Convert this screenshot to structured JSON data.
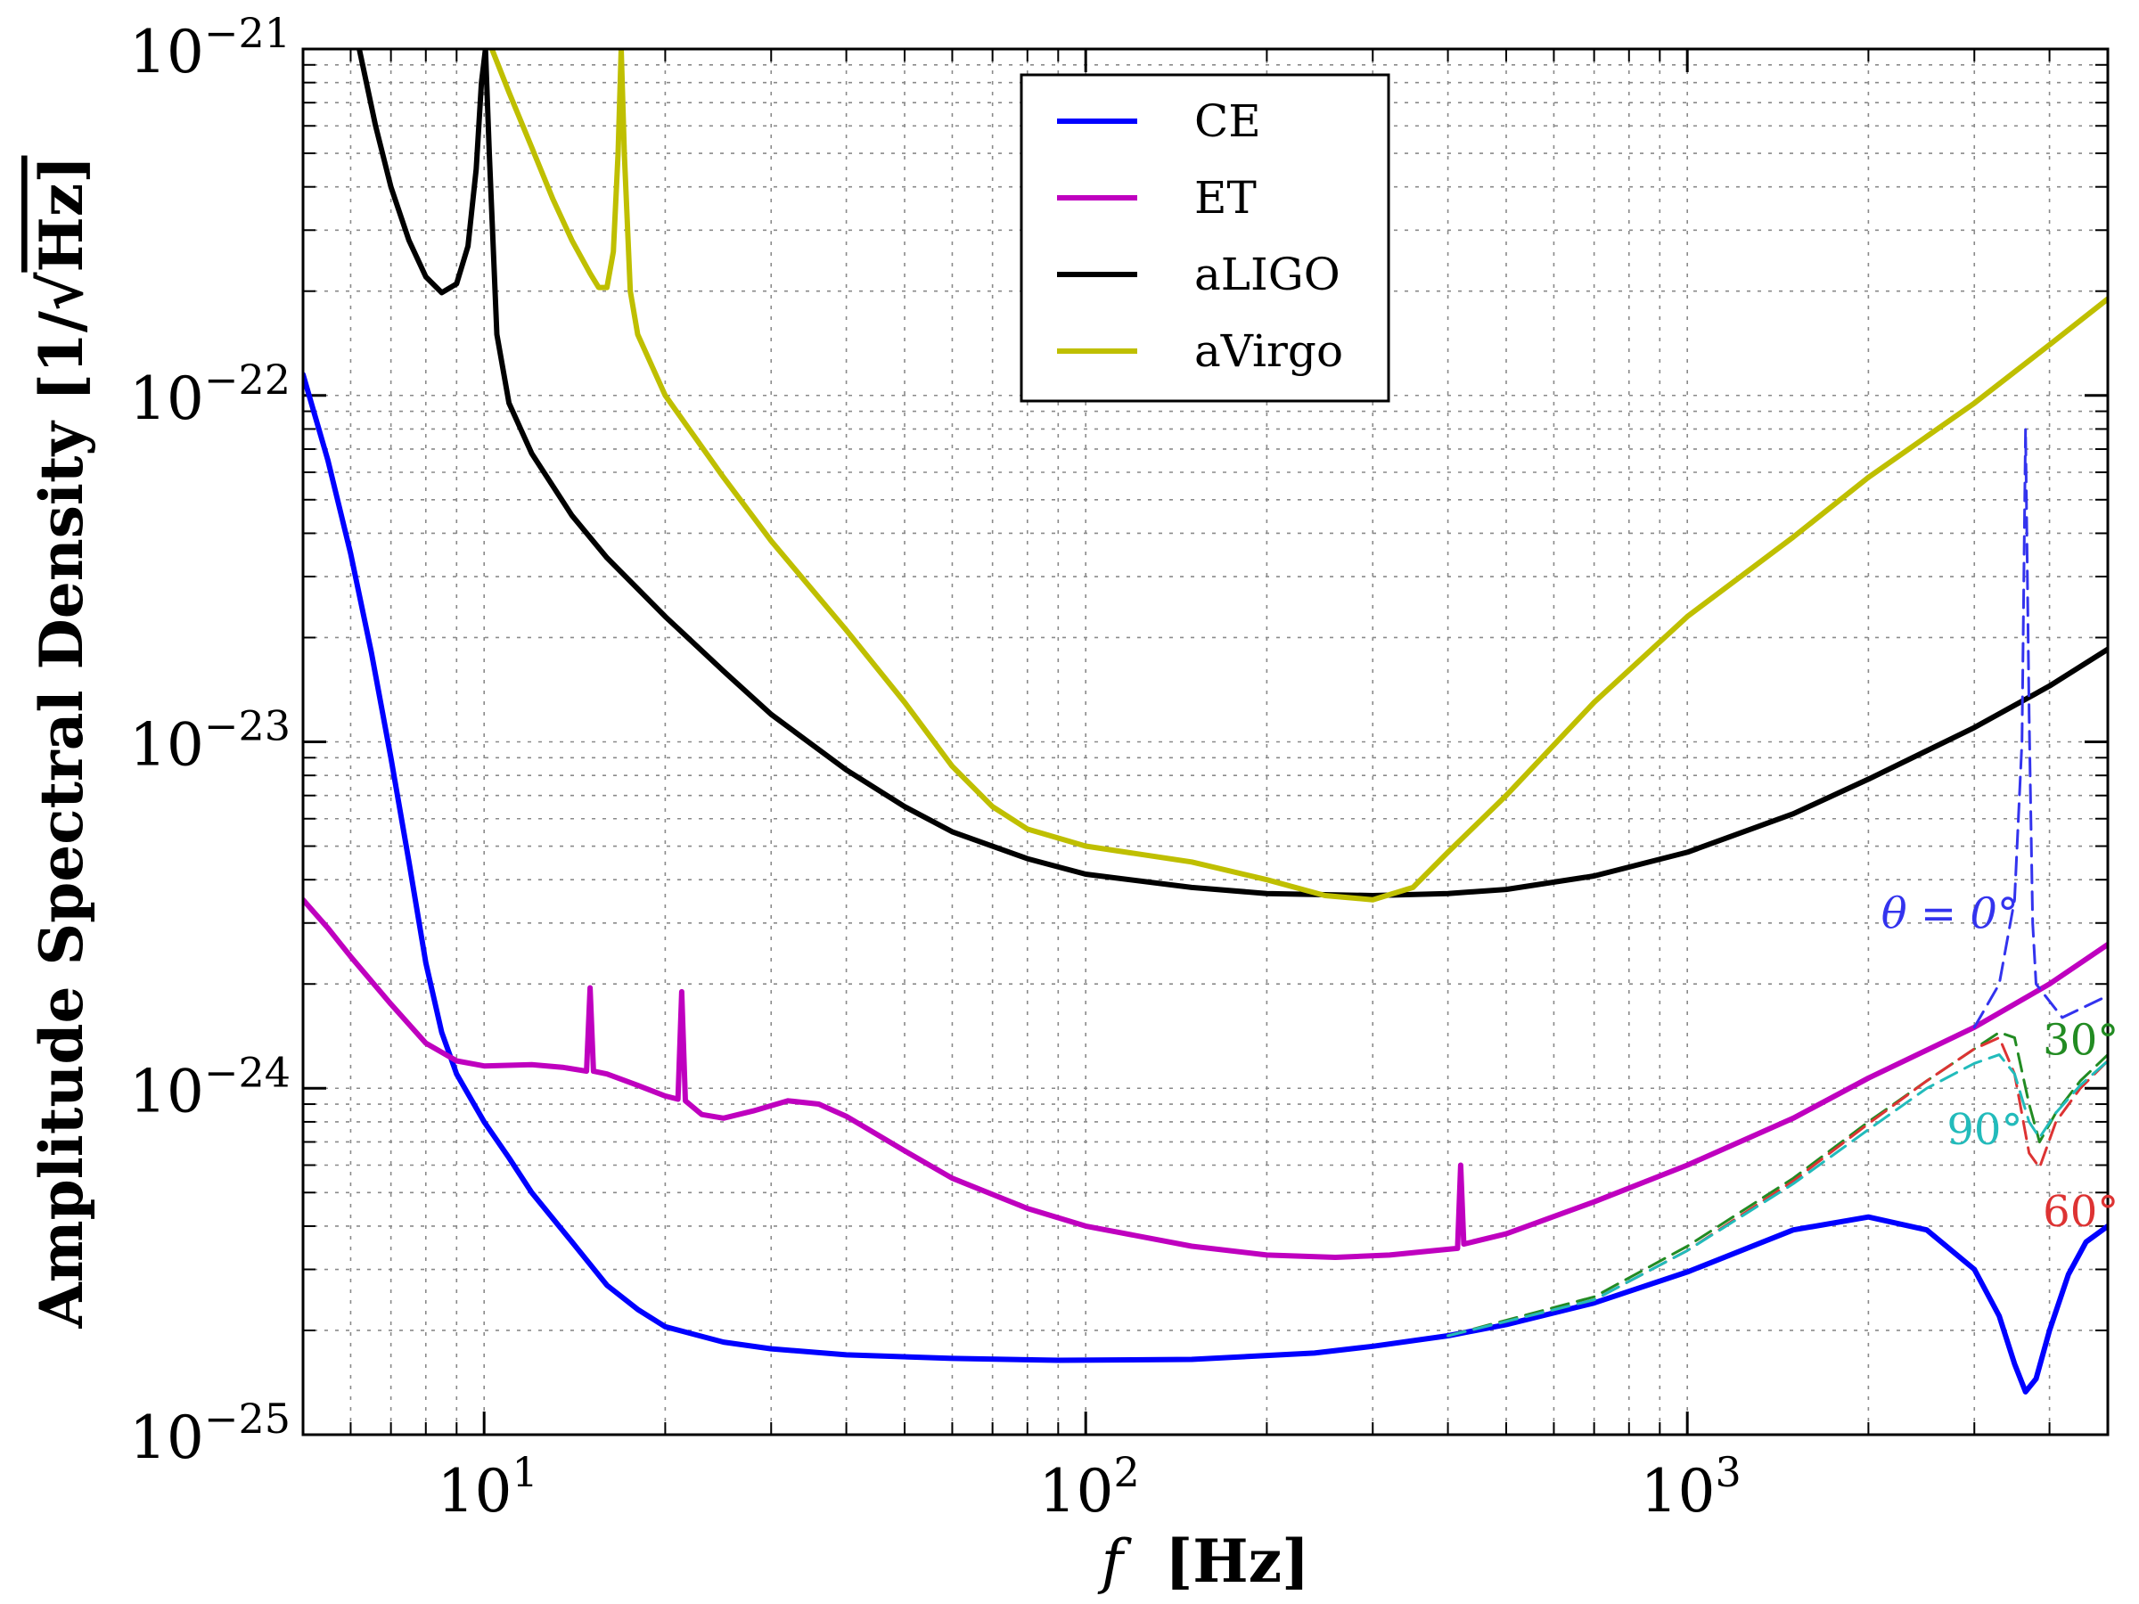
{
  "chart_data": {
    "type": "line",
    "xscale": "log",
    "yscale": "log",
    "xlim": [
      5,
      5000
    ],
    "ylim": [
      1e-25,
      1e-21
    ],
    "grid": true,
    "xlabel_var": "f",
    "xlabel_unit": "[Hz]",
    "ylabel_text": "Amplitude Spectral Density [1/√",
    "ylabel_unit_tail": "Hz]",
    "x_ticks": [
      {
        "value": 10,
        "base": "10",
        "exp": "1"
      },
      {
        "value": 100,
        "base": "10",
        "exp": "2"
      },
      {
        "value": 1000,
        "base": "10",
        "exp": "3"
      }
    ],
    "y_ticks": [
      {
        "value": 1e-21,
        "base": "10",
        "exp": "−21"
      },
      {
        "value": 1e-22,
        "base": "10",
        "exp": "−22"
      },
      {
        "value": 1e-23,
        "base": "10",
        "exp": "−23"
      },
      {
        "value": 1e-24,
        "base": "10",
        "exp": "−24"
      },
      {
        "value": 1e-25,
        "base": "10",
        "exp": "−25"
      }
    ],
    "legend_position": "upper-center",
    "series": [
      {
        "name": "CE",
        "color": "#0000ff",
        "style": "solid",
        "legend": true,
        "points": [
          [
            5,
            1.15e-22
          ],
          [
            5.5,
            6.5e-23
          ],
          [
            6,
            3.5e-23
          ],
          [
            6.5,
            1.8e-23
          ],
          [
            7,
            9e-24
          ],
          [
            7.5,
            4.5e-24
          ],
          [
            8,
            2.3e-24
          ],
          [
            8.5,
            1.45e-24
          ],
          [
            9,
            1.1e-24
          ],
          [
            10,
            8e-25
          ],
          [
            11,
            6.3e-25
          ],
          [
            12,
            5e-25
          ],
          [
            14,
            3.6e-25
          ],
          [
            16,
            2.7e-25
          ],
          [
            18,
            2.3e-25
          ],
          [
            20,
            2.05e-25
          ],
          [
            25,
            1.85e-25
          ],
          [
            30,
            1.77e-25
          ],
          [
            40,
            1.7e-25
          ],
          [
            60,
            1.66e-25
          ],
          [
            90,
            1.64e-25
          ],
          [
            150,
            1.65e-25
          ],
          [
            240,
            1.72e-25
          ],
          [
            300,
            1.8e-25
          ],
          [
            400,
            1.93e-25
          ],
          [
            500,
            2.08e-25
          ],
          [
            700,
            2.4e-25
          ],
          [
            1000,
            2.95e-25
          ],
          [
            1500,
            3.9e-25
          ],
          [
            2000,
            4.25e-25
          ],
          [
            2500,
            3.9e-25
          ],
          [
            3000,
            3e-25
          ],
          [
            3300,
            2.2e-25
          ],
          [
            3500,
            1.6e-25
          ],
          [
            3650,
            1.33e-25
          ],
          [
            3800,
            1.45e-25
          ],
          [
            4000,
            2e-25
          ],
          [
            4300,
            2.9e-25
          ],
          [
            4600,
            3.6e-25
          ],
          [
            5000,
            4e-25
          ]
        ]
      },
      {
        "name": "ET",
        "color": "#bf00bf",
        "style": "solid",
        "legend": true,
        "points": [
          [
            5,
            3.5e-24
          ],
          [
            5.5,
            2.9e-24
          ],
          [
            6,
            2.4e-24
          ],
          [
            7,
            1.75e-24
          ],
          [
            8,
            1.35e-24
          ],
          [
            9,
            1.2e-24
          ],
          [
            10,
            1.16e-24
          ],
          [
            12,
            1.17e-24
          ],
          [
            13.5,
            1.15e-24
          ],
          [
            14.8,
            1.12e-24
          ],
          [
            15,
            1.95e-24
          ],
          [
            15.2,
            1.12e-24
          ],
          [
            16,
            1.1e-24
          ],
          [
            18,
            1.02e-24
          ],
          [
            20,
            9.5e-25
          ],
          [
            21,
            9.3e-25
          ],
          [
            21.3,
            1.9e-24
          ],
          [
            21.6,
            9.2e-25
          ],
          [
            23,
            8.4e-25
          ],
          [
            25,
            8.2e-25
          ],
          [
            28,
            8.6e-25
          ],
          [
            32,
            9.2e-25
          ],
          [
            36,
            9e-25
          ],
          [
            40,
            8.3e-25
          ],
          [
            50,
            6.6e-25
          ],
          [
            60,
            5.5e-25
          ],
          [
            80,
            4.5e-25
          ],
          [
            100,
            4e-25
          ],
          [
            150,
            3.5e-25
          ],
          [
            200,
            3.3e-25
          ],
          [
            260,
            3.25e-25
          ],
          [
            320,
            3.3e-25
          ],
          [
            380,
            3.4e-25
          ],
          [
            415,
            3.45e-25
          ],
          [
            420,
            6e-25
          ],
          [
            425,
            3.55e-25
          ],
          [
            500,
            3.8e-25
          ],
          [
            700,
            4.7e-25
          ],
          [
            1000,
            6e-25
          ],
          [
            1500,
            8.2e-25
          ],
          [
            2000,
            1.07e-24
          ],
          [
            3000,
            1.5e-24
          ],
          [
            4000,
            2e-24
          ],
          [
            5000,
            2.6e-24
          ]
        ]
      },
      {
        "name": "aLIGO",
        "color": "#000000",
        "style": "solid",
        "legend": true,
        "points": [
          [
            6.2,
            1e-21
          ],
          [
            6.6,
            6e-22
          ],
          [
            7,
            4e-22
          ],
          [
            7.5,
            2.8e-22
          ],
          [
            8,
            2.2e-22
          ],
          [
            8.5,
            1.98e-22
          ],
          [
            9,
            2.1e-22
          ],
          [
            9.4,
            2.7e-22
          ],
          [
            9.7,
            4.5e-22
          ],
          [
            9.9,
            8e-22
          ],
          [
            10.05,
            1e-21
          ],
          [
            10.2,
            5e-22
          ],
          [
            10.5,
            1.5e-22
          ],
          [
            11,
            9.5e-23
          ],
          [
            12,
            6.8e-23
          ],
          [
            14,
            4.5e-23
          ],
          [
            16,
            3.4e-23
          ],
          [
            20,
            2.3e-23
          ],
          [
            25,
            1.6e-23
          ],
          [
            30,
            1.2e-23
          ],
          [
            40,
            8.3e-24
          ],
          [
            50,
            6.5e-24
          ],
          [
            60,
            5.5e-24
          ],
          [
            80,
            4.6e-24
          ],
          [
            100,
            4.15e-24
          ],
          [
            150,
            3.8e-24
          ],
          [
            200,
            3.65e-24
          ],
          [
            300,
            3.6e-24
          ],
          [
            400,
            3.65e-24
          ],
          [
            500,
            3.75e-24
          ],
          [
            700,
            4.1e-24
          ],
          [
            1000,
            4.8e-24
          ],
          [
            1500,
            6.2e-24
          ],
          [
            2000,
            7.8e-24
          ],
          [
            3000,
            1.1e-23
          ],
          [
            4000,
            1.45e-23
          ],
          [
            5000,
            1.85e-23
          ]
        ]
      },
      {
        "name": "aVirgo",
        "color": "#bfbf00",
        "style": "solid",
        "legend": true,
        "points": [
          [
            10.3,
            1e-21
          ],
          [
            11,
            7.5e-22
          ],
          [
            12,
            5.2e-22
          ],
          [
            13,
            3.7e-22
          ],
          [
            14,
            2.8e-22
          ],
          [
            15,
            2.25e-22
          ],
          [
            15.5,
            2.05e-22
          ],
          [
            16,
            2.05e-22
          ],
          [
            16.4,
            2.6e-22
          ],
          [
            16.7,
            5e-22
          ],
          [
            16.9,
            1e-21
          ],
          [
            17.1,
            5e-22
          ],
          [
            17.5,
            2e-22
          ],
          [
            18,
            1.5e-22
          ],
          [
            20,
            1e-22
          ],
          [
            25,
            5.8e-23
          ],
          [
            30,
            3.8e-23
          ],
          [
            40,
            2.1e-23
          ],
          [
            50,
            1.3e-23
          ],
          [
            60,
            8.5e-24
          ],
          [
            70,
            6.5e-24
          ],
          [
            80,
            5.6e-24
          ],
          [
            100,
            5e-24
          ],
          [
            150,
            4.5e-24
          ],
          [
            200,
            4e-24
          ],
          [
            250,
            3.6e-24
          ],
          [
            300,
            3.5e-24
          ],
          [
            350,
            3.8e-24
          ],
          [
            400,
            4.8e-24
          ],
          [
            500,
            7e-24
          ],
          [
            700,
            1.3e-23
          ],
          [
            1000,
            2.3e-23
          ],
          [
            1500,
            3.9e-23
          ],
          [
            2000,
            5.8e-23
          ],
          [
            3000,
            9.5e-23
          ],
          [
            4000,
            1.4e-22
          ],
          [
            5000,
            1.9e-22
          ]
        ]
      },
      {
        "name": "θ = 0°",
        "color": "#3333ee",
        "style": "dashed",
        "legend": false,
        "points": [
          [
            3000,
            1.5e-24
          ],
          [
            3300,
            2e-24
          ],
          [
            3500,
            3.5e-24
          ],
          [
            3600,
            1e-23
          ],
          [
            3650,
            8e-23
          ],
          [
            3700,
            1.2e-23
          ],
          [
            3750,
            3e-24
          ],
          [
            3800,
            2e-24
          ],
          [
            4200,
            1.6e-24
          ],
          [
            5000,
            1.85e-24
          ]
        ]
      },
      {
        "name": "30°",
        "color": "#228b22",
        "style": "dashed",
        "legend": false,
        "points": [
          [
            400,
            1.93e-25
          ],
          [
            700,
            2.5e-25
          ],
          [
            1000,
            3.5e-25
          ],
          [
            1500,
            5.5e-25
          ],
          [
            2000,
            8e-25
          ],
          [
            2500,
            1.05e-24
          ],
          [
            3000,
            1.3e-24
          ],
          [
            3300,
            1.45e-24
          ],
          [
            3500,
            1.4e-24
          ],
          [
            3700,
            9e-25
          ],
          [
            3850,
            7e-25
          ],
          [
            4100,
            8.5e-25
          ],
          [
            4500,
            1.05e-24
          ],
          [
            5000,
            1.25e-24
          ]
        ]
      },
      {
        "name": "60°",
        "color": "#dd3333",
        "style": "dashed",
        "legend": false,
        "points": [
          [
            400,
            1.93e-25
          ],
          [
            700,
            2.45e-25
          ],
          [
            1000,
            3.4e-25
          ],
          [
            1500,
            5.4e-25
          ],
          [
            2000,
            7.9e-25
          ],
          [
            2500,
            1.05e-24
          ],
          [
            3000,
            1.3e-24
          ],
          [
            3300,
            1.4e-24
          ],
          [
            3500,
            1.1e-24
          ],
          [
            3700,
            6.5e-25
          ],
          [
            3850,
            5.9e-25
          ],
          [
            4100,
            8e-25
          ],
          [
            4500,
            1e-24
          ],
          [
            5000,
            1.2e-24
          ]
        ]
      },
      {
        "name": "90°",
        "color": "#22bbbb",
        "style": "dashed",
        "legend": false,
        "points": [
          [
            400,
            1.93e-25
          ],
          [
            700,
            2.45e-25
          ],
          [
            1000,
            3.4e-25
          ],
          [
            1500,
            5.3e-25
          ],
          [
            2000,
            7.6e-25
          ],
          [
            2500,
            1e-24
          ],
          [
            3000,
            1.18e-24
          ],
          [
            3300,
            1.25e-24
          ],
          [
            3500,
            1.1e-24
          ],
          [
            3700,
            8e-25
          ],
          [
            3850,
            7.2e-25
          ],
          [
            4100,
            8.5e-25
          ],
          [
            4500,
            1.02e-24
          ],
          [
            5000,
            1.2e-24
          ]
        ]
      }
    ],
    "annotations": [
      {
        "text": "θ = 0°",
        "color": "#3333ee",
        "at": [
          2100,
          2.9e-24
        ]
      },
      {
        "text": "30°",
        "color": "#228b22",
        "at": [
          3900,
          1.25e-24
        ]
      },
      {
        "text": "60°",
        "color": "#dd3333",
        "at": [
          3900,
          4e-25
        ]
      },
      {
        "text": "90°",
        "color": "#22bbbb",
        "at": [
          2700,
          6.9e-25
        ]
      }
    ]
  }
}
